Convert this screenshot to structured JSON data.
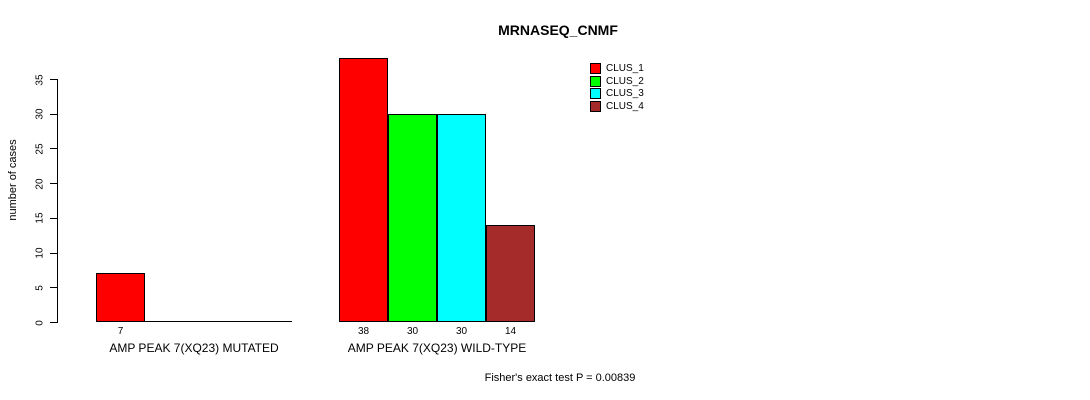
{
  "title": "MRNASEQ_CNMF",
  "footer_note": "Fisher's exact test P = 0.00839",
  "y_axis": {
    "label": "number of cases"
  },
  "legend": {
    "position": "top-right",
    "items": [
      {
        "label": "CLUS_1",
        "color": "#FF0000"
      },
      {
        "label": "CLUS_2",
        "color": "#00FF00"
      },
      {
        "label": "CLUS_3",
        "color": "#00FFFF"
      },
      {
        "label": "CLUS_4",
        "color": "#A52A2A"
      }
    ]
  },
  "chart_data": {
    "type": "bar",
    "title": "MRNASEQ_CNMF",
    "xlabel": "",
    "ylabel": "number of cases",
    "ylim": [
      0,
      38
    ],
    "y_ticks": [
      0,
      5,
      10,
      15,
      20,
      25,
      30,
      35
    ],
    "grid": false,
    "legend_position": "top-right",
    "bar_style": "grouped-beside",
    "categories": [
      "AMP PEAK 7(XQ23) MUTATED",
      "AMP PEAK 7(XQ23) WILD-TYPE"
    ],
    "series": [
      {
        "name": "CLUS_1",
        "color": "#FF0000",
        "values": [
          7,
          38
        ]
      },
      {
        "name": "CLUS_2",
        "color": "#00FF00",
        "values": [
          0,
          30
        ]
      },
      {
        "name": "CLUS_3",
        "color": "#00FFFF",
        "values": [
          0,
          30
        ]
      },
      {
        "name": "CLUS_4",
        "color": "#A52A2A",
        "values": [
          0,
          14
        ]
      }
    ],
    "bar_value_labels": {
      "show": true,
      "hide_zero": true,
      "values_shown": [
        "7",
        "38",
        "30",
        "30",
        "14"
      ]
    },
    "annotation": "Fisher's exact test P = 0.00839"
  }
}
